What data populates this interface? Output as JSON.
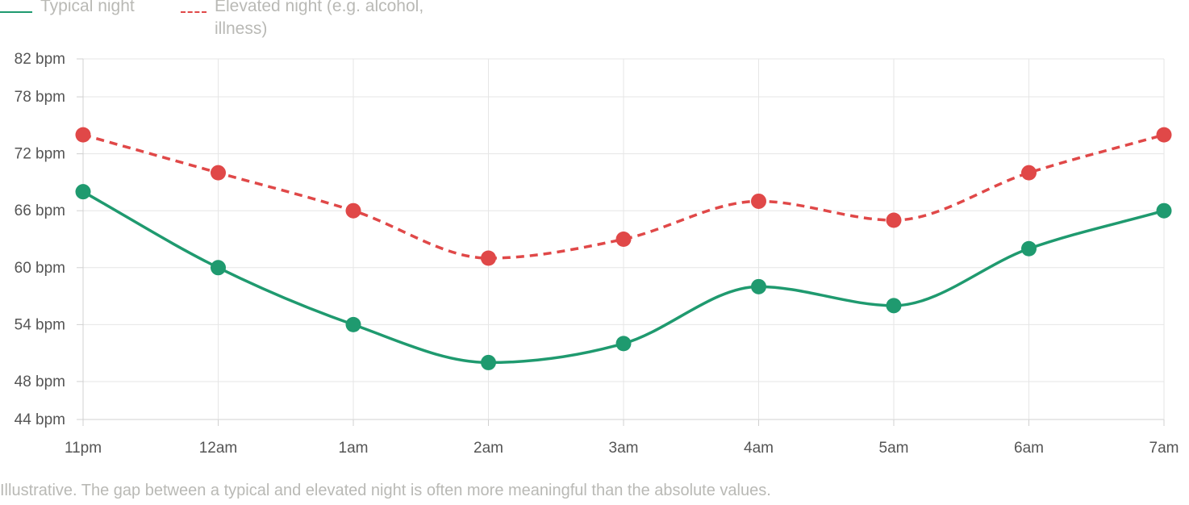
{
  "legend": {
    "typical_label": "Typical night",
    "elevated_label": "Elevated night (e.g. alcohol, illness)"
  },
  "caption": "Illustrative. The gap between a typical and elevated night is often more meaningful than the absolute values.",
  "colors": {
    "typical": "#1f9a6f",
    "elevated": "#e04848",
    "grid": "#e6e6e6",
    "axis": "#d0d0d0",
    "tick_text": "#555555",
    "muted_text": "#b9b9b5"
  },
  "chart_data": {
    "type": "line",
    "categories": [
      "11pm",
      "12am",
      "1am",
      "2am",
      "3am",
      "4am",
      "5am",
      "6am",
      "7am"
    ],
    "y_ticks": [
      44,
      48,
      54,
      60,
      66,
      72,
      78,
      82
    ],
    "y_tick_suffix": " bpm",
    "ylim": [
      44,
      82
    ],
    "grid": true,
    "legend_position": "top-left",
    "series": [
      {
        "name": "Typical night",
        "style": "solid",
        "values": [
          68,
          60,
          54,
          50,
          52,
          58,
          56,
          62,
          66
        ]
      },
      {
        "name": "Elevated night (e.g. alcohol, illness)",
        "style": "dashed",
        "values": [
          74,
          70,
          66,
          61,
          63,
          67,
          65,
          70,
          74
        ]
      }
    ]
  }
}
